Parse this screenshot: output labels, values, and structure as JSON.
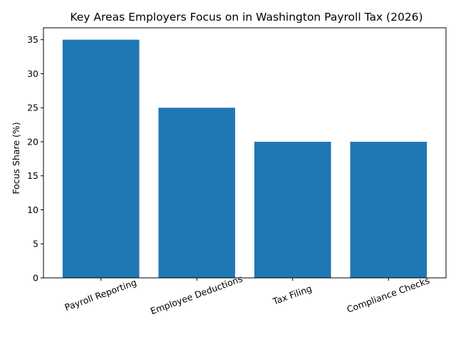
{
  "chart_data": {
    "type": "bar",
    "title": "Key Areas Employers Focus on in Washington Payroll Tax (2026)",
    "xlabel": "",
    "ylabel": "Focus Share (%)",
    "categories": [
      "Payroll Reporting",
      "Employee Deductions",
      "Tax Filing",
      "Compliance Checks"
    ],
    "values": [
      35,
      25,
      20,
      20
    ],
    "ylim": [
      0,
      36.75
    ],
    "yticks": [
      0,
      5,
      10,
      15,
      20,
      25,
      30,
      35
    ],
    "bar_color": "#1f77b4",
    "grid": false,
    "legend": "none",
    "xtick_rotation_deg": -20
  }
}
